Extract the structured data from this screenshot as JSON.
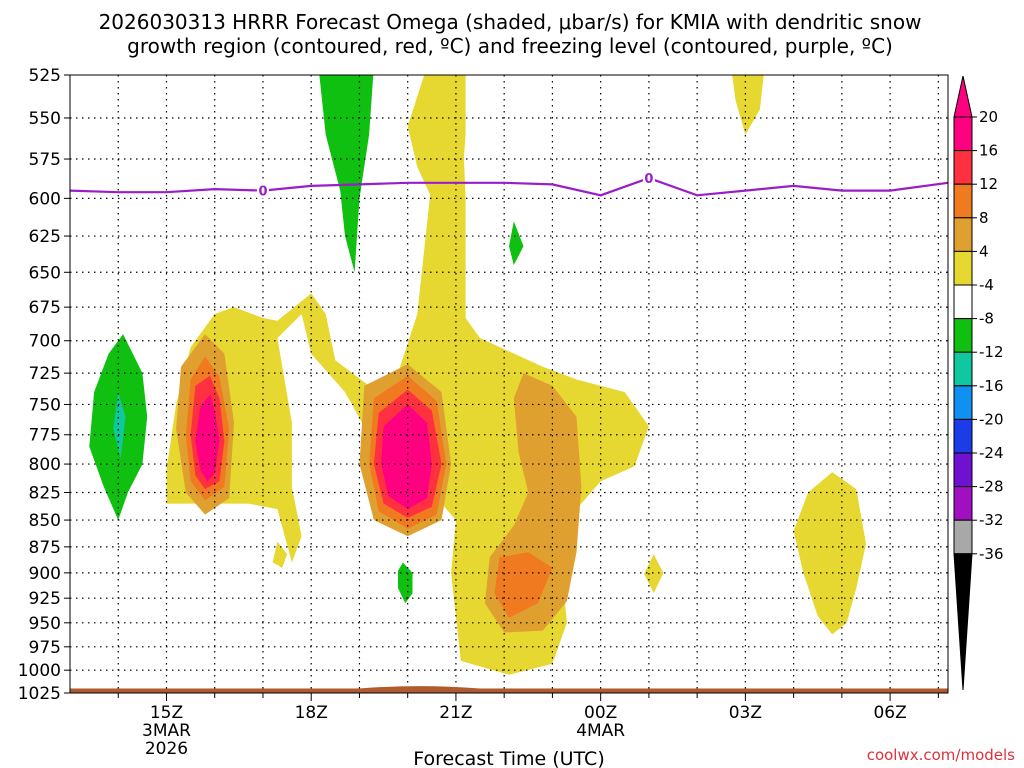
{
  "chart_data": {
    "type": "contour",
    "title_line1": "2026030313 HRRR Forecast Omega (shaded, μbar/s) for KMIA with dendritic snow",
    "title_line2": "growth region (contoured, red, ºC) and freezing level (contoured, purple, ºC)",
    "xlabel": "Forecast Time (UTC)",
    "credit": "coolwx.com/models",
    "x_range_hours": [
      13.0,
      31.2
    ],
    "y_range_mb": [
      525,
      1025
    ],
    "y_ticks": [
      525,
      550,
      575,
      600,
      625,
      650,
      675,
      700,
      725,
      750,
      775,
      800,
      825,
      850,
      875,
      900,
      925,
      950,
      975,
      1000,
      1025
    ],
    "x_ticks": [
      {
        "hour": 15,
        "label": "15Z",
        "date": "3MAR",
        "year": "2026"
      },
      {
        "hour": 18,
        "label": "18Z",
        "date": "",
        "year": ""
      },
      {
        "hour": 21,
        "label": "21Z",
        "date": "",
        "year": ""
      },
      {
        "hour": 24,
        "label": "00Z",
        "date": "4MAR",
        "year": ""
      },
      {
        "hour": 27,
        "label": "03Z",
        "date": "",
        "year": ""
      },
      {
        "hour": 30,
        "label": "06Z",
        "date": "",
        "year": ""
      }
    ],
    "colorbar": {
      "levels": [
        "20",
        "16",
        "12",
        "8",
        "4",
        "-4",
        "-8",
        "-12",
        "-16",
        "-20",
        "-24",
        "-28",
        "-32",
        "-36"
      ],
      "colors": [
        "#ff0080",
        "#ff3040",
        "#f07a20",
        "#e0a030",
        "#e6d830",
        "#ffffff",
        "#10c010",
        "#10c8a0",
        "#1090f0",
        "#1c3ce8",
        "#7010d0",
        "#a010c0",
        "#a8a8a8",
        "#000000"
      ],
      "top_arrow_color": "#ff0080",
      "bottom_arrow_color": "#000000"
    },
    "freezing_level": {
      "label": "0",
      "color": "#9a1ec8",
      "points": [
        [
          13.0,
          595
        ],
        [
          14.0,
          596
        ],
        [
          15.0,
          596
        ],
        [
          16.0,
          594
        ],
        [
          17.0,
          595
        ],
        [
          18.0,
          592
        ],
        [
          19.0,
          591
        ],
        [
          20.0,
          590
        ],
        [
          21.0,
          590
        ],
        [
          22.0,
          590
        ],
        [
          23.0,
          591
        ],
        [
          24.0,
          598
        ],
        [
          25.0,
          587
        ],
        [
          26.0,
          598
        ],
        [
          27.0,
          595
        ],
        [
          28.0,
          592
        ],
        [
          29.0,
          595
        ],
        [
          30.0,
          595
        ],
        [
          31.2,
          590
        ]
      ],
      "label_positions": [
        17.0,
        25.0
      ]
    },
    "ground_layer": {
      "color": "#b05a30",
      "top_mb": 1020,
      "bump_hours": [
        19.0,
        21.5
      ],
      "bump_top_mb": 1017
    },
    "regions": [
      {
        "value": "4 to 8",
        "color": "#e6d830",
        "points": [
          [
            20.2,
            680
          ],
          [
            20.6,
            560
          ],
          [
            21.1,
            530
          ],
          [
            21.2,
            600
          ],
          [
            21.2,
            683
          ],
          [
            21.5,
            698
          ],
          [
            22.8,
            720
          ],
          [
            23.5,
            730
          ],
          [
            24.5,
            740
          ],
          [
            25.0,
            768
          ],
          [
            24.7,
            802
          ],
          [
            24.0,
            815
          ],
          [
            23.5,
            840
          ],
          [
            22.9,
            860
          ],
          [
            23.2,
            900
          ],
          [
            23.3,
            950
          ],
          [
            23.0,
            993
          ],
          [
            22.1,
            1005
          ],
          [
            21.1,
            990
          ],
          [
            20.9,
            900
          ],
          [
            21.0,
            850
          ],
          [
            20.3,
            815
          ],
          [
            19.4,
            790
          ],
          [
            18.7,
            740
          ],
          [
            18.0,
            710
          ],
          [
            17.8,
            680
          ],
          [
            17.3,
            698
          ],
          [
            17.6,
            765
          ],
          [
            17.6,
            820
          ],
          [
            17.8,
            865
          ],
          [
            17.6,
            890
          ],
          [
            17.3,
            840
          ],
          [
            16.7,
            835
          ],
          [
            15.0,
            835
          ],
          [
            15.0,
            805
          ],
          [
            15.2,
            750
          ],
          [
            15.5,
            705
          ],
          [
            16.0,
            680
          ],
          [
            16.4,
            675
          ],
          [
            17.0,
            683
          ],
          [
            17.3,
            685
          ],
          [
            18.0,
            665
          ],
          [
            18.3,
            680
          ],
          [
            18.5,
            715
          ],
          [
            19.2,
            735
          ],
          [
            19.8,
            725
          ]
        ]
      },
      {
        "value": "4 to 8",
        "color": "#e6d830",
        "points": [
          [
            20.5,
            600
          ],
          [
            20.2,
            580
          ],
          [
            20.0,
            555
          ],
          [
            20.4,
            520
          ],
          [
            21.2,
            520
          ],
          [
            21.2,
            560
          ],
          [
            21.1,
            600
          ]
        ]
      },
      {
        "value": "4 to 8",
        "color": "#e6d830",
        "points": [
          [
            26.7,
            520
          ],
          [
            27.4,
            520
          ],
          [
            27.3,
            545
          ],
          [
            27.0,
            560
          ],
          [
            26.8,
            540
          ]
        ]
      },
      {
        "value": "4 to 8",
        "color": "#e6d830",
        "points": [
          [
            28.8,
            807
          ],
          [
            29.3,
            822
          ],
          [
            29.5,
            872
          ],
          [
            29.3,
            915
          ],
          [
            29.1,
            950
          ],
          [
            28.8,
            962
          ],
          [
            28.5,
            943
          ],
          [
            28.2,
            900
          ],
          [
            28.0,
            860
          ],
          [
            28.3,
            825
          ]
        ]
      },
      {
        "value": "4 to 8",
        "color": "#e6d830",
        "points": [
          [
            25.1,
            882
          ],
          [
            25.3,
            900
          ],
          [
            25.1,
            920
          ],
          [
            24.9,
            901
          ]
        ]
      },
      {
        "value": "4 to 8",
        "color": "#e6d830",
        "points": [
          [
            17.2,
            890
          ],
          [
            17.3,
            870
          ],
          [
            17.5,
            882
          ],
          [
            17.4,
            895
          ]
        ]
      },
      {
        "value": "8 to 12",
        "color": "#e0a030",
        "points": [
          [
            15.3,
            720
          ],
          [
            15.8,
            695
          ],
          [
            16.2,
            710
          ],
          [
            16.4,
            765
          ],
          [
            16.3,
            830
          ],
          [
            15.8,
            845
          ],
          [
            15.4,
            825
          ],
          [
            15.2,
            770
          ]
        ]
      },
      {
        "value": "8 to 12",
        "color": "#e0a030",
        "points": [
          [
            19.1,
            735
          ],
          [
            20.0,
            718
          ],
          [
            20.7,
            740
          ],
          [
            20.9,
            800
          ],
          [
            20.7,
            850
          ],
          [
            20.0,
            865
          ],
          [
            19.3,
            850
          ],
          [
            19.0,
            800
          ]
        ]
      },
      {
        "value": "8 to 12",
        "color": "#e0a030",
        "points": [
          [
            22.4,
            725
          ],
          [
            23.0,
            735
          ],
          [
            23.5,
            760
          ],
          [
            23.6,
            820
          ],
          [
            23.5,
            880
          ],
          [
            23.3,
            928
          ],
          [
            22.8,
            958
          ],
          [
            22.0,
            960
          ],
          [
            21.6,
            930
          ],
          [
            21.7,
            885
          ],
          [
            22.2,
            855
          ],
          [
            22.5,
            825
          ],
          [
            22.3,
            790
          ],
          [
            22.2,
            745
          ]
        ]
      },
      {
        "value": "12 to 16",
        "color": "#f07a20",
        "points": [
          [
            15.5,
            730
          ],
          [
            15.8,
            712
          ],
          [
            16.1,
            728
          ],
          [
            16.3,
            770
          ],
          [
            16.2,
            820
          ],
          [
            15.8,
            832
          ],
          [
            15.5,
            815
          ],
          [
            15.4,
            775
          ]
        ]
      },
      {
        "value": "12 to 16",
        "color": "#f07a20",
        "points": [
          [
            19.3,
            745
          ],
          [
            20.0,
            727
          ],
          [
            20.6,
            747
          ],
          [
            20.8,
            800
          ],
          [
            20.6,
            845
          ],
          [
            20.0,
            858
          ],
          [
            19.4,
            842
          ],
          [
            19.2,
            800
          ]
        ]
      },
      {
        "value": "12 to 16",
        "color": "#f07a20",
        "points": [
          [
            21.9,
            885
          ],
          [
            22.5,
            880
          ],
          [
            23.0,
            895
          ],
          [
            22.7,
            930
          ],
          [
            22.1,
            945
          ],
          [
            21.8,
            920
          ]
        ]
      },
      {
        "value": "16 to 20",
        "color": "#ff3040",
        "points": [
          [
            15.6,
            735
          ],
          [
            15.9,
            727
          ],
          [
            16.1,
            745
          ],
          [
            16.2,
            780
          ],
          [
            16.1,
            815
          ],
          [
            15.8,
            822
          ],
          [
            15.6,
            810
          ],
          [
            15.5,
            775
          ]
        ]
      },
      {
        "value": "16 to 20",
        "color": "#ff3040",
        "points": [
          [
            19.4,
            757
          ],
          [
            20.0,
            738
          ],
          [
            20.5,
            755
          ],
          [
            20.7,
            800
          ],
          [
            20.5,
            838
          ],
          [
            20.0,
            848
          ],
          [
            19.5,
            835
          ],
          [
            19.3,
            800
          ]
        ]
      },
      {
        "value": ">20",
        "color": "#ff0080",
        "points": [
          [
            15.7,
            752
          ],
          [
            15.9,
            742
          ],
          [
            16.0,
            755
          ],
          [
            16.1,
            780
          ],
          [
            16.0,
            808
          ],
          [
            15.85,
            815
          ],
          [
            15.7,
            805
          ],
          [
            15.6,
            780
          ]
        ]
      },
      {
        "value": ">20",
        "color": "#ff0080",
        "points": [
          [
            19.5,
            768
          ],
          [
            20.0,
            750
          ],
          [
            20.4,
            765
          ],
          [
            20.5,
            800
          ],
          [
            20.4,
            830
          ],
          [
            20.0,
            840
          ],
          [
            19.6,
            828
          ],
          [
            19.45,
            800
          ]
        ]
      },
      {
        "value": "-4 to -8",
        "color": "#10c010",
        "points": [
          [
            18.15,
            520
          ],
          [
            19.3,
            520
          ],
          [
            19.2,
            560
          ],
          [
            19.0,
            600
          ],
          [
            18.95,
            625
          ],
          [
            18.9,
            650
          ],
          [
            18.7,
            625
          ],
          [
            18.6,
            595
          ],
          [
            18.3,
            560
          ]
        ]
      },
      {
        "value": "-4 to -8",
        "color": "#10c010",
        "points": [
          [
            14.1,
            695
          ],
          [
            14.5,
            725
          ],
          [
            14.6,
            760
          ],
          [
            14.5,
            800
          ],
          [
            14.2,
            825
          ],
          [
            14.0,
            850
          ],
          [
            13.7,
            820
          ],
          [
            13.4,
            785
          ],
          [
            13.5,
            740
          ],
          [
            13.8,
            710
          ]
        ]
      },
      {
        "value": "-4 to -8",
        "color": "#10c010",
        "points": [
          [
            19.9,
            890
          ],
          [
            20.1,
            900
          ],
          [
            20.1,
            920
          ],
          [
            19.95,
            930
          ],
          [
            19.8,
            915
          ],
          [
            19.8,
            898
          ]
        ]
      },
      {
        "value": "-4 to -8",
        "color": "#10c010",
        "points": [
          [
            22.2,
            615
          ],
          [
            22.4,
            632
          ],
          [
            22.2,
            645
          ],
          [
            22.1,
            632
          ]
        ]
      },
      {
        "value": "-8 to -12",
        "color": "#10c8a0",
        "points": [
          [
            14.0,
            740
          ],
          [
            14.15,
            760
          ],
          [
            14.05,
            795
          ],
          [
            13.9,
            770
          ]
        ]
      }
    ]
  }
}
